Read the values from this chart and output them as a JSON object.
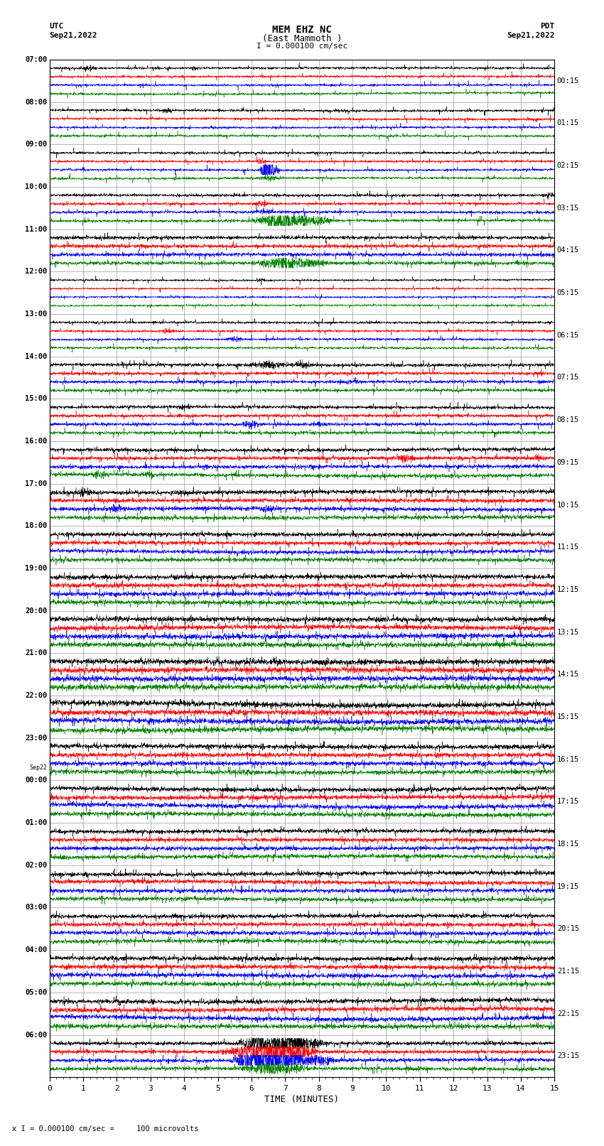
{
  "title_line1": "MEM EHZ NC",
  "title_line2": "(East Mammoth )",
  "scale_text": "I = 0.000100 cm/sec",
  "left_label": "UTC",
  "left_date": "Sep21,2022",
  "right_label": "PDT",
  "right_date": "Sep21,2022",
  "xlabel": "TIME (MINUTES)",
  "bottom_note": "x I = 0.000100 cm/sec =     100 microvolts",
  "left_times": [
    "07:00",
    "08:00",
    "09:00",
    "10:00",
    "11:00",
    "12:00",
    "13:00",
    "14:00",
    "15:00",
    "16:00",
    "17:00",
    "18:00",
    "19:00",
    "20:00",
    "21:00",
    "22:00",
    "23:00",
    "Sep22",
    "00:00",
    "01:00",
    "02:00",
    "03:00",
    "04:00",
    "05:00",
    "06:00"
  ],
  "right_times": [
    "00:15",
    "01:15",
    "02:15",
    "03:15",
    "04:15",
    "05:15",
    "06:15",
    "07:15",
    "08:15",
    "09:15",
    "10:15",
    "11:15",
    "12:15",
    "13:15",
    "14:15",
    "15:15",
    "16:15",
    "17:15",
    "18:15",
    "19:15",
    "20:15",
    "21:15",
    "22:15",
    "23:15"
  ],
  "colors": [
    "black",
    "red",
    "blue",
    "green"
  ],
  "bg_color": "white",
  "grid_color": "#999999",
  "num_rows": 24,
  "traces_per_row": 4,
  "minutes": 15,
  "xmin": 0,
  "xmax": 15
}
